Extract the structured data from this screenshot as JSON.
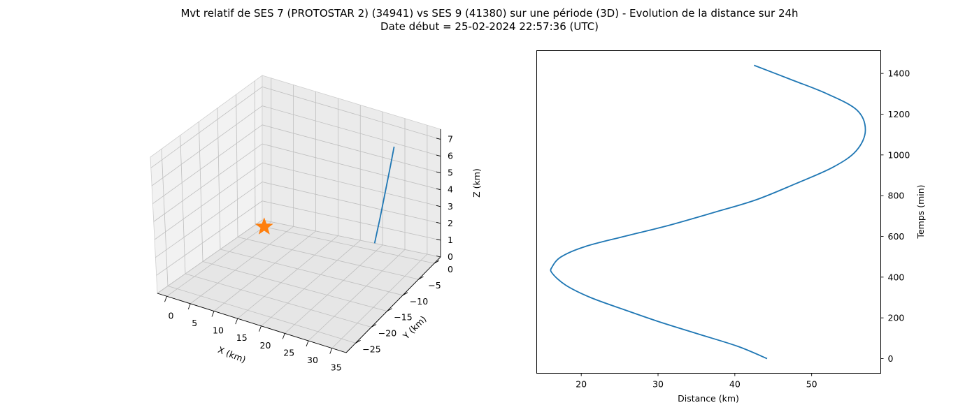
{
  "title_line1": "Mvt relatif de SES 7 (PROTOSTAR 2) (34941) vs SES 9 (41380) sur une période (3D) - Evolution de la distance sur 24h",
  "title_line2": "Date début = 25-02-2024 22:57:36 (UTC)",
  "chart_data": [
    {
      "type": "line3d",
      "xlabel": "X (km)",
      "ylabel": "Y (km)",
      "zlabel": "Z (km)",
      "x_ticks": [
        "0",
        "5",
        "10",
        "15",
        "20",
        "25",
        "30",
        "35"
      ],
      "y_ticks": [
        "0",
        "−5",
        "−10",
        "−15",
        "−20",
        "−25"
      ],
      "z_ticks": [
        "0",
        "1",
        "2",
        "3",
        "4",
        "5",
        "6",
        "7"
      ],
      "xlim": [
        -2,
        38
      ],
      "ylim": [
        -28,
        2
      ],
      "zlim": [
        0,
        7.6
      ],
      "grid": true,
      "series": [
        {
          "color": "#1f77b4",
          "points": [
            {
              "x": 27.2,
              "y": -3.5,
              "z": 1.2
            },
            {
              "x": 27.9,
              "y": -2.8,
              "z": 2.6
            },
            {
              "x": 28.6,
              "y": -2.0,
              "z": 4.2
            },
            {
              "x": 29.2,
              "y": -1.3,
              "z": 5.6
            },
            {
              "x": 29.6,
              "y": -0.8,
              "z": 6.6
            }
          ]
        }
      ],
      "marker": {
        "symbol": "star",
        "color": "#ff7f0e",
        "x": 0,
        "y": 0,
        "z": 0
      }
    },
    {
      "type": "line",
      "xlabel": "Distance (km)",
      "ylabel": "Temps (min)",
      "x_ticks": [
        20,
        30,
        40,
        50
      ],
      "y_ticks": [
        0,
        200,
        400,
        600,
        800,
        1000,
        1200,
        1400
      ],
      "xlim": [
        14.2,
        59.0
      ],
      "ylim": [
        -72,
        1512
      ],
      "y_axis_side": "right",
      "grid": false,
      "series": [
        {
          "color": "#1f77b4",
          "x": [
            44.2,
            40.4,
            35.3,
            30.2,
            25.6,
            21.2,
            18.0,
            16.2,
            16.2,
            17.4,
            20.5,
            25.6,
            31.0,
            37.5,
            42.8,
            48.0,
            52.8,
            55.8,
            57.0,
            55.9,
            52.0,
            47.3,
            42.5
          ],
          "y": [
            0,
            60,
            120,
            180,
            240,
            300,
            360,
            420,
            450,
            500,
            550,
            600,
            650,
            720,
            780,
            860,
            940,
            1020,
            1120,
            1220,
            1300,
            1370,
            1440
          ]
        }
      ]
    }
  ]
}
